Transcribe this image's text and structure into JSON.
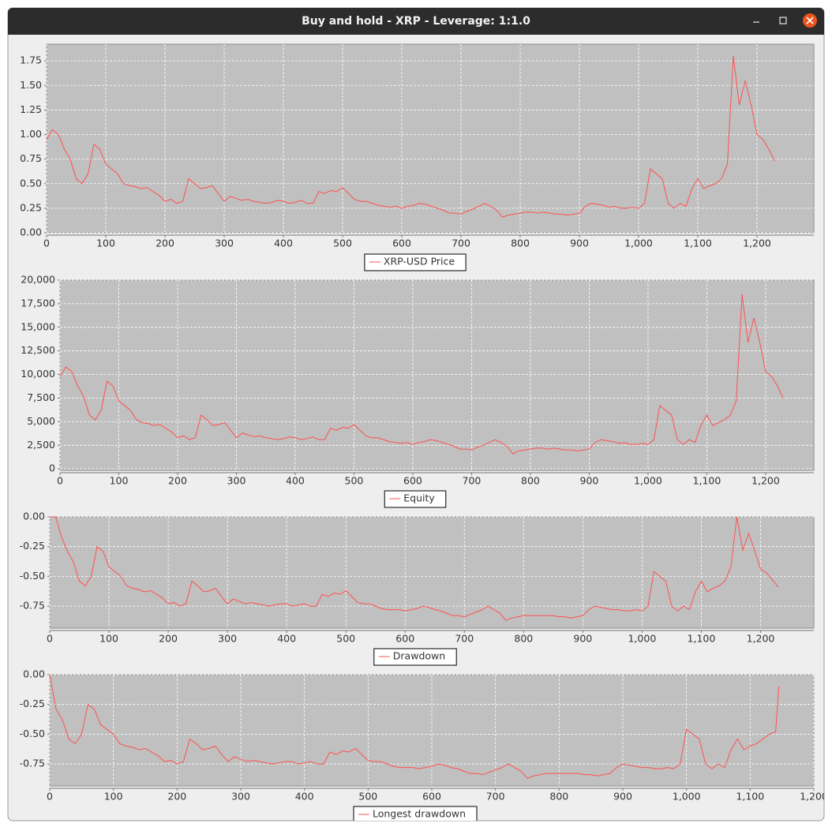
{
  "window": {
    "title": "Buy and hold - XRP - Leverage: 1:1.0"
  },
  "chart_data": [
    {
      "type": "line",
      "grid": true,
      "legend": "bottom",
      "x": [
        0,
        10,
        20,
        30,
        40,
        50,
        60,
        70,
        80,
        90,
        100,
        110,
        120,
        130,
        140,
        150,
        160,
        170,
        180,
        190,
        200,
        210,
        220,
        230,
        240,
        250,
        260,
        270,
        280,
        290,
        300,
        310,
        320,
        330,
        340,
        350,
        360,
        370,
        380,
        390,
        400,
        410,
        420,
        430,
        440,
        450,
        460,
        470,
        480,
        490,
        500,
        510,
        520,
        530,
        540,
        550,
        560,
        570,
        580,
        590,
        600,
        610,
        620,
        630,
        640,
        650,
        660,
        670,
        680,
        690,
        700,
        710,
        720,
        730,
        740,
        750,
        760,
        770,
        780,
        790,
        800,
        810,
        820,
        830,
        840,
        850,
        860,
        870,
        880,
        890,
        900,
        910,
        920,
        930,
        940,
        950,
        960,
        970,
        980,
        990,
        1000,
        1010,
        1020,
        1030,
        1040,
        1050,
        1060,
        1070,
        1080,
        1090,
        1100,
        1110,
        1120,
        1130,
        1140,
        1150,
        1160,
        1170,
        1180,
        1190,
        1200,
        1210,
        1220,
        1230
      ],
      "series": [
        {
          "name": "XRP-USD Price",
          "color": "#ff5050",
          "values": [
            0.95,
            1.05,
            1.0,
            0.85,
            0.75,
            0.55,
            0.5,
            0.6,
            0.9,
            0.85,
            0.7,
            0.65,
            0.6,
            0.5,
            0.48,
            0.47,
            0.45,
            0.46,
            0.42,
            0.38,
            0.32,
            0.34,
            0.3,
            0.32,
            0.55,
            0.5,
            0.45,
            0.46,
            0.48,
            0.4,
            0.32,
            0.37,
            0.35,
            0.33,
            0.34,
            0.32,
            0.31,
            0.3,
            0.31,
            0.33,
            0.32,
            0.3,
            0.31,
            0.33,
            0.3,
            0.3,
            0.42,
            0.4,
            0.43,
            0.42,
            0.46,
            0.4,
            0.34,
            0.32,
            0.32,
            0.3,
            0.28,
            0.27,
            0.26,
            0.27,
            0.25,
            0.27,
            0.28,
            0.3,
            0.29,
            0.27,
            0.25,
            0.23,
            0.2,
            0.2,
            0.19,
            0.22,
            0.24,
            0.27,
            0.3,
            0.27,
            0.23,
            0.16,
            0.18,
            0.19,
            0.2,
            0.21,
            0.21,
            0.2,
            0.21,
            0.2,
            0.19,
            0.19,
            0.18,
            0.19,
            0.2,
            0.27,
            0.3,
            0.29,
            0.28,
            0.26,
            0.27,
            0.25,
            0.25,
            0.26,
            0.25,
            0.3,
            0.65,
            0.6,
            0.55,
            0.3,
            0.25,
            0.3,
            0.27,
            0.45,
            0.55,
            0.45,
            0.48,
            0.5,
            0.55,
            0.7,
            1.8,
            1.3,
            1.55,
            1.3,
            1.0,
            0.95,
            0.85,
            0.73
          ]
        }
      ],
      "xlim": [
        0,
        1296
      ],
      "xticks": [
        0,
        100,
        200,
        300,
        400,
        500,
        600,
        700,
        800,
        900,
        {
          "value": 1000,
          "label": "1,000"
        },
        {
          "value": 1100,
          "label": "1,100"
        },
        {
          "value": 1200,
          "label": "1,200"
        }
      ],
      "ylim": [
        0,
        1.92
      ],
      "yticks": [
        {
          "value": 0,
          "label": "0.00"
        },
        0.25,
        {
          "value": 0.5,
          "label": "0.50"
        },
        0.75,
        {
          "value": 1,
          "label": "1.00"
        },
        1.25,
        {
          "value": 1.5,
          "label": "1.50"
        },
        1.75
      ]
    },
    {
      "type": "line",
      "grid": true,
      "legend": "bottom",
      "x": [
        0,
        10,
        20,
        30,
        40,
        50,
        60,
        70,
        80,
        90,
        100,
        110,
        120,
        130,
        140,
        150,
        160,
        170,
        180,
        190,
        200,
        210,
        220,
        230,
        240,
        250,
        260,
        270,
        280,
        290,
        300,
        310,
        320,
        330,
        340,
        350,
        360,
        370,
        380,
        390,
        400,
        410,
        420,
        430,
        440,
        450,
        460,
        470,
        480,
        490,
        500,
        510,
        520,
        530,
        540,
        550,
        560,
        570,
        580,
        590,
        600,
        610,
        620,
        630,
        640,
        650,
        660,
        670,
        680,
        690,
        700,
        710,
        720,
        730,
        740,
        750,
        760,
        770,
        780,
        790,
        800,
        810,
        820,
        830,
        840,
        850,
        860,
        870,
        880,
        890,
        900,
        910,
        920,
        930,
        940,
        950,
        960,
        970,
        980,
        990,
        1000,
        1010,
        1020,
        1030,
        1040,
        1050,
        1060,
        1070,
        1080,
        1090,
        1100,
        1110,
        1120,
        1130,
        1140,
        1150,
        1160,
        1170,
        1180,
        1190,
        1200,
        1210,
        1220,
        1230
      ],
      "series": [
        {
          "name": "Equity",
          "color": "#ff5050",
          "values": [
            9800,
            10800,
            10300,
            8800,
            7700,
            5700,
            5200,
            6200,
            9300,
            8800,
            7200,
            6700,
            6200,
            5200,
            4900,
            4800,
            4600,
            4700,
            4300,
            3900,
            3300,
            3500,
            3100,
            3300,
            5700,
            5200,
            4600,
            4700,
            4900,
            4100,
            3300,
            3800,
            3600,
            3400,
            3500,
            3300,
            3200,
            3100,
            3200,
            3400,
            3300,
            3100,
            3200,
            3400,
            3100,
            3100,
            4300,
            4100,
            4400,
            4300,
            4700,
            4100,
            3500,
            3300,
            3300,
            3100,
            2900,
            2800,
            2700,
            2800,
            2600,
            2800,
            2900,
            3100,
            3000,
            2800,
            2600,
            2400,
            2100,
            2100,
            2000,
            2300,
            2500,
            2800,
            3100,
            2800,
            2400,
            1600,
            1900,
            2000,
            2100,
            2200,
            2200,
            2100,
            2200,
            2100,
            2000,
            2000,
            1900,
            2000,
            2100,
            2800,
            3100,
            3000,
            2900,
            2700,
            2800,
            2600,
            2600,
            2700,
            2600,
            3100,
            6700,
            6200,
            5700,
            3100,
            2600,
            3100,
            2800,
            4600,
            5700,
            4600,
            4900,
            5200,
            5700,
            7200,
            18500,
            13400,
            16000,
            13400,
            10300,
            9800,
            8800,
            7500
          ]
        }
      ],
      "xlim": [
        0,
        1282
      ],
      "xticks": [
        0,
        100,
        200,
        300,
        400,
        500,
        600,
        700,
        800,
        900,
        {
          "value": 1000,
          "label": "1,000"
        },
        {
          "value": 1100,
          "label": "1,100"
        },
        {
          "value": 1200,
          "label": "1,200"
        }
      ],
      "ylim": [
        -150,
        20000
      ],
      "yticks": [
        0,
        {
          "value": 2500,
          "label": "2,500"
        },
        {
          "value": 5000,
          "label": "5,000"
        },
        {
          "value": 7500,
          "label": "7,500"
        },
        {
          "value": 10000,
          "label": "10,000"
        },
        {
          "value": 12500,
          "label": "12,500"
        },
        {
          "value": 15000,
          "label": "15,000"
        },
        {
          "value": 17500,
          "label": "17,500"
        },
        {
          "value": 20000,
          "label": "20,000"
        }
      ]
    },
    {
      "type": "line",
      "grid": true,
      "legend": "bottom",
      "x": [
        0,
        10,
        20,
        30,
        40,
        50,
        60,
        70,
        80,
        90,
        100,
        110,
        120,
        130,
        140,
        150,
        160,
        170,
        180,
        190,
        200,
        210,
        220,
        230,
        240,
        250,
        260,
        270,
        280,
        290,
        300,
        310,
        320,
        330,
        340,
        350,
        360,
        370,
        380,
        390,
        400,
        410,
        420,
        430,
        440,
        450,
        460,
        470,
        480,
        490,
        500,
        510,
        520,
        530,
        540,
        550,
        560,
        570,
        580,
        590,
        600,
        610,
        620,
        630,
        640,
        650,
        660,
        670,
        680,
        690,
        700,
        710,
        720,
        730,
        740,
        750,
        760,
        770,
        780,
        790,
        800,
        810,
        820,
        830,
        840,
        850,
        860,
        870,
        880,
        890,
        900,
        910,
        920,
        930,
        940,
        950,
        960,
        970,
        980,
        990,
        1000,
        1010,
        1020,
        1030,
        1040,
        1050,
        1060,
        1070,
        1080,
        1090,
        1100,
        1110,
        1120,
        1130,
        1140,
        1150,
        1160,
        1170,
        1180,
        1190,
        1200,
        1210,
        1220,
        1230
      ],
      "series": [
        {
          "name": "Drawdown",
          "color": "#ff5050",
          "values": [
            0,
            0,
            -0.17,
            -0.29,
            -0.38,
            -0.54,
            -0.58,
            -0.5,
            -0.25,
            -0.29,
            -0.42,
            -0.46,
            -0.5,
            -0.58,
            -0.6,
            -0.61,
            -0.63,
            -0.62,
            -0.65,
            -0.68,
            -0.73,
            -0.72,
            -0.75,
            -0.73,
            -0.54,
            -0.58,
            -0.63,
            -0.62,
            -0.6,
            -0.67,
            -0.73,
            -0.69,
            -0.71,
            -0.73,
            -0.72,
            -0.73,
            -0.74,
            -0.75,
            -0.74,
            -0.73,
            -0.73,
            -0.75,
            -0.74,
            -0.73,
            -0.75,
            -0.75,
            -0.65,
            -0.67,
            -0.64,
            -0.65,
            -0.62,
            -0.67,
            -0.72,
            -0.73,
            -0.73,
            -0.75,
            -0.77,
            -0.78,
            -0.78,
            -0.78,
            -0.79,
            -0.78,
            -0.77,
            -0.75,
            -0.76,
            -0.78,
            -0.79,
            -0.81,
            -0.83,
            -0.83,
            -0.84,
            -0.82,
            -0.8,
            -0.78,
            -0.75,
            -0.78,
            -0.81,
            -0.87,
            -0.85,
            -0.84,
            -0.83,
            -0.83,
            -0.83,
            -0.83,
            -0.83,
            -0.83,
            -0.84,
            -0.84,
            -0.85,
            -0.84,
            -0.83,
            -0.78,
            -0.75,
            -0.76,
            -0.77,
            -0.78,
            -0.78,
            -0.79,
            -0.79,
            -0.78,
            -0.79,
            -0.75,
            -0.46,
            -0.5,
            -0.54,
            -0.75,
            -0.79,
            -0.75,
            -0.78,
            -0.63,
            -0.54,
            -0.63,
            -0.6,
            -0.58,
            -0.54,
            -0.42,
            0,
            -0.28,
            -0.14,
            -0.28,
            -0.44,
            -0.47,
            -0.53,
            -0.59
          ]
        }
      ],
      "xlim": [
        0,
        1290
      ],
      "xticks": [
        0,
        100,
        200,
        300,
        400,
        500,
        600,
        700,
        800,
        900,
        {
          "value": 1000,
          "label": "1,000"
        },
        {
          "value": 1100,
          "label": "1,100"
        },
        {
          "value": 1200,
          "label": "1,200"
        }
      ],
      "ylim": [
        -0.935,
        0
      ],
      "yticks": [
        {
          "value": 0,
          "label": "0.00"
        },
        -0.25,
        {
          "value": -0.5,
          "label": "-0.50"
        },
        -0.75
      ]
    },
    {
      "type": "line",
      "grid": true,
      "legend": "bottom",
      "x": [
        0,
        10,
        20,
        30,
        40,
        50,
        60,
        70,
        80,
        90,
        100,
        110,
        120,
        130,
        140,
        150,
        160,
        170,
        180,
        190,
        200,
        210,
        220,
        230,
        240,
        250,
        260,
        270,
        280,
        290,
        300,
        310,
        320,
        330,
        340,
        350,
        360,
        370,
        380,
        390,
        400,
        410,
        420,
        430,
        440,
        450,
        460,
        470,
        480,
        490,
        500,
        510,
        520,
        530,
        540,
        550,
        560,
        570,
        580,
        590,
        600,
        610,
        620,
        630,
        640,
        650,
        660,
        670,
        680,
        690,
        700,
        710,
        720,
        730,
        740,
        750,
        760,
        770,
        780,
        790,
        800,
        810,
        820,
        830,
        840,
        850,
        860,
        870,
        880,
        890,
        900,
        910,
        920,
        930,
        940,
        950,
        960,
        970,
        980,
        990,
        1000,
        1010,
        1020,
        1030,
        1040,
        1050,
        1060,
        1070,
        1080,
        1090,
        1100,
        1110,
        1120,
        1130,
        1140,
        1145
      ],
      "series": [
        {
          "name": "Longest drawdown",
          "color": "#ff5050",
          "values": [
            0,
            -0.29,
            -0.38,
            -0.54,
            -0.58,
            -0.5,
            -0.25,
            -0.29,
            -0.42,
            -0.46,
            -0.5,
            -0.58,
            -0.6,
            -0.61,
            -0.63,
            -0.62,
            -0.65,
            -0.68,
            -0.73,
            -0.72,
            -0.75,
            -0.73,
            -0.54,
            -0.58,
            -0.63,
            -0.62,
            -0.6,
            -0.67,
            -0.73,
            -0.69,
            -0.71,
            -0.73,
            -0.72,
            -0.73,
            -0.74,
            -0.75,
            -0.74,
            -0.73,
            -0.73,
            -0.75,
            -0.74,
            -0.73,
            -0.75,
            -0.75,
            -0.65,
            -0.67,
            -0.64,
            -0.65,
            -0.62,
            -0.67,
            -0.72,
            -0.73,
            -0.73,
            -0.75,
            -0.77,
            -0.78,
            -0.78,
            -0.78,
            -0.79,
            -0.78,
            -0.77,
            -0.75,
            -0.76,
            -0.78,
            -0.79,
            -0.81,
            -0.83,
            -0.83,
            -0.84,
            -0.82,
            -0.8,
            -0.78,
            -0.75,
            -0.78,
            -0.81,
            -0.87,
            -0.85,
            -0.84,
            -0.83,
            -0.83,
            -0.83,
            -0.83,
            -0.83,
            -0.83,
            -0.84,
            -0.84,
            -0.85,
            -0.84,
            -0.83,
            -0.78,
            -0.75,
            -0.76,
            -0.77,
            -0.78,
            -0.78,
            -0.79,
            -0.79,
            -0.78,
            -0.79,
            -0.75,
            -0.46,
            -0.5,
            -0.54,
            -0.75,
            -0.79,
            -0.75,
            -0.78,
            -0.63,
            -0.54,
            -0.63,
            -0.6,
            -0.58,
            -0.54,
            -0.5,
            -0.48,
            -0.1
          ]
        }
      ],
      "xlim": [
        0,
        1200
      ],
      "xticks": [
        0,
        100,
        200,
        300,
        400,
        500,
        600,
        700,
        800,
        900,
        {
          "value": 1000,
          "label": "1,000"
        },
        {
          "value": 1100,
          "label": "1,100"
        },
        {
          "value": 1200,
          "label": "1,200"
        }
      ],
      "ylim": [
        -0.935,
        0
      ],
      "yticks": [
        {
          "value": 0,
          "label": "0.00"
        },
        -0.25,
        {
          "value": -0.5,
          "label": "-0.50"
        },
        -0.75
      ]
    }
  ]
}
